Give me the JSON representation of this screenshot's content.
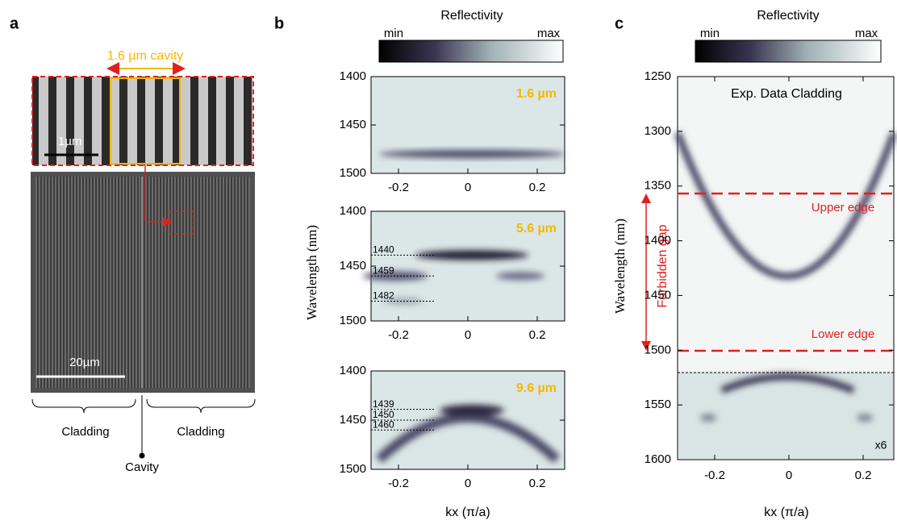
{
  "panel_a": {
    "label": "a",
    "cavity_label": "1.6 µm cavity",
    "inset_scale": "1µm",
    "main_scale": "20µm",
    "left_region": "Cladding",
    "right_region": "Cladding",
    "center_label": "Cavity"
  },
  "panel_b": {
    "label": "b",
    "colorbar": {
      "title": "Reflectivity",
      "min": "min",
      "max": "max"
    },
    "y_axis_label": "Wavelength (nm)",
    "x_axis_label": "kx (π/a)",
    "plots": [
      {
        "tag": "1.6 µm",
        "yticks": [
          1400,
          1450,
          1500
        ],
        "xticks": [
          -0.2,
          0,
          0.2
        ],
        "levels": []
      },
      {
        "tag": "5.6 µm",
        "yticks": [
          1400,
          1450,
          1500
        ],
        "xticks": [
          -0.2,
          0,
          0.2
        ],
        "levels": [
          1440,
          1459,
          1482
        ]
      },
      {
        "tag": "9.6 µm",
        "yticks": [
          1400,
          1450,
          1500
        ],
        "xticks": [
          -0.2,
          0,
          0.2
        ],
        "levels": [
          1439,
          1450,
          1460
        ]
      }
    ]
  },
  "panel_c": {
    "label": "c",
    "colorbar": {
      "title": "Reflectivity",
      "min": "min",
      "max": "max"
    },
    "title": "Exp. Data Cladding",
    "y_axis_label": "Wavelength (nm)",
    "x_axis_label": "kx (π/a)",
    "yticks": [
      1250,
      1300,
      1350,
      1400,
      1450,
      1500,
      1550,
      1600
    ],
    "xticks": [
      -0.2,
      0,
      0.2
    ],
    "upper_edge": "Upper edge",
    "lower_edge": "Lower edge",
    "gap_label": "Forbidden gap",
    "magnification": "x6"
  }
}
